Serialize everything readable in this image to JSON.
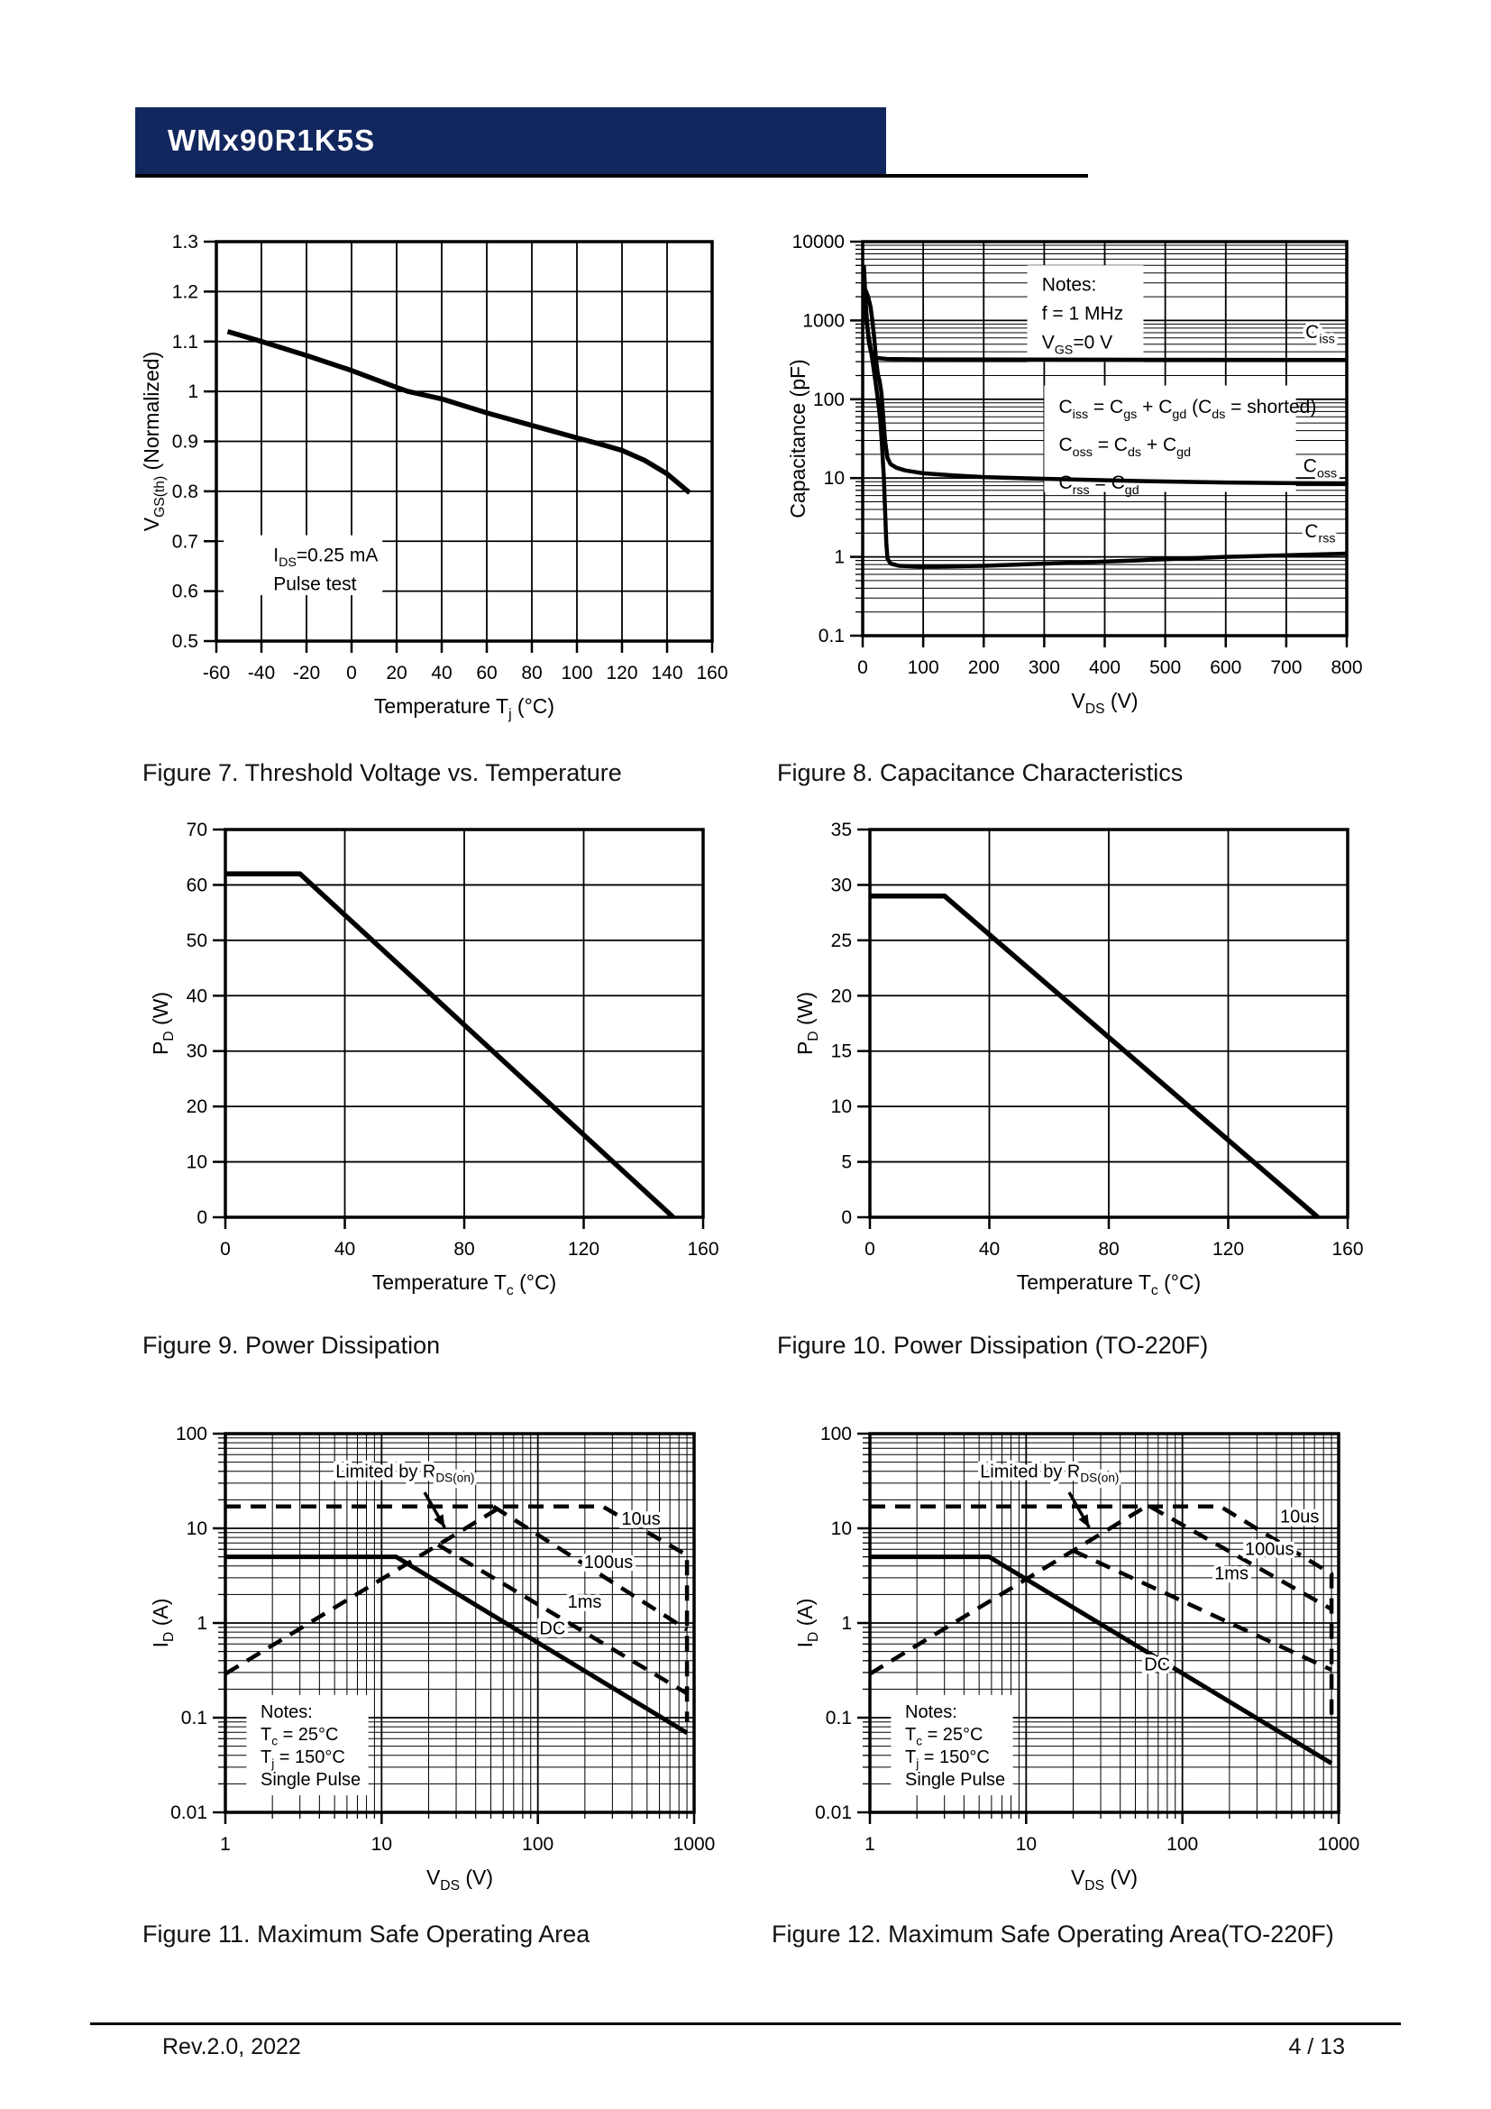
{
  "page": {
    "title": "WMx90R1K5S",
    "footer_left": "Rev.2.0, 2022",
    "footer_right": "4 / 13",
    "accent_color": "#12275e",
    "line_color": "#000000"
  },
  "chart_data": [
    {
      "id": "figure7",
      "type": "line",
      "title": "Figure 7. Threshold Voltage vs. Temperature",
      "xlabel": "Temperature T_{j} (°C)",
      "ylabel": "V_{GS(th)} (Normalized)",
      "xscale": "linear",
      "xlim": [
        -60,
        160
      ],
      "yscale": "linear",
      "ylim": [
        0.5,
        1.3
      ],
      "xticks": [
        -60,
        -40,
        -20,
        0,
        20,
        40,
        60,
        80,
        100,
        120,
        140,
        160
      ],
      "xtick_labels": [
        "-60",
        "-40",
        "-20",
        "0",
        "20",
        "40",
        "60",
        "80",
        "100",
        "120",
        "140",
        "160"
      ],
      "yticks": [
        0.5,
        0.6,
        0.7,
        0.8,
        0.9,
        1,
        1.1,
        1.2,
        1.3
      ],
      "ytick_labels": [
        "0.5",
        "0.6",
        "0.7",
        "0.8",
        "0.9",
        "1",
        "1.1",
        "1.2",
        "1.3"
      ],
      "series": [
        {
          "name": "VGS(th) normalized",
          "dash": false,
          "width": 5.5,
          "points": [
            [
              -55,
              1.12
            ],
            [
              -40,
              1.1
            ],
            [
              -20,
              1.072
            ],
            [
              0,
              1.042
            ],
            [
              20,
              1.008
            ],
            [
              25,
              1.0
            ],
            [
              40,
              0.985
            ],
            [
              60,
              0.957
            ],
            [
              80,
              0.932
            ],
            [
              100,
              0.907
            ],
            [
              110,
              0.895
            ],
            [
              120,
              0.882
            ],
            [
              130,
              0.862
            ],
            [
              140,
              0.835
            ],
            [
              150,
              0.797
            ]
          ]
        }
      ],
      "annotations": [
        {
          "text": "I_{DS}=0.25 mA\nPulse test",
          "fx": 0.115,
          "fy": 0.8,
          "size": 21,
          "lh": 32,
          "box": [
            0.015,
            0.735,
            0.32,
            0.15
          ]
        }
      ],
      "arrows": []
    },
    {
      "id": "figure8",
      "type": "line",
      "title": "Figure 8. Capacitance Characteristics",
      "xlabel": "V_{DS} (V)",
      "ylabel": "Capacitance (pF)",
      "xscale": "linear",
      "xlim": [
        0,
        800
      ],
      "yscale": "log",
      "ylim": [
        0.1,
        10000
      ],
      "xticks": [
        0,
        100,
        200,
        300,
        400,
        500,
        600,
        700,
        800
      ],
      "xtick_labels": [
        "0",
        "100",
        "200",
        "300",
        "400",
        "500",
        "600",
        "700",
        "800"
      ],
      "yticks": [
        0.1,
        1,
        10,
        100,
        1000,
        10000
      ],
      "ytick_labels": [
        "0.1",
        "1",
        "10",
        "100",
        "1000",
        "10000"
      ],
      "series": [
        {
          "name": "Ciss",
          "dash": false,
          "width": 4.5,
          "points": [
            [
              2,
              5000
            ],
            [
              3,
              3500
            ],
            [
              4,
              2300
            ],
            [
              6,
              1300
            ],
            [
              8,
              800
            ],
            [
              10,
              550
            ],
            [
              13,
              420
            ],
            [
              17,
              360
            ],
            [
              22,
              335
            ],
            [
              40,
              325
            ],
            [
              100,
              320
            ],
            [
              400,
              318
            ],
            [
              800,
              315
            ]
          ]
        },
        {
          "name": "Coss",
          "dash": false,
          "width": 4.5,
          "points": [
            [
              2,
              2600
            ],
            [
              5,
              2400
            ],
            [
              9,
              2000
            ],
            [
              13,
              1500
            ],
            [
              16,
              1000
            ],
            [
              19,
              600
            ],
            [
              21,
              400
            ],
            [
              23,
              280
            ],
            [
              25,
              210
            ],
            [
              28,
              170
            ],
            [
              31,
              120
            ],
            [
              34,
              60
            ],
            [
              37,
              30
            ],
            [
              41,
              18
            ],
            [
              46,
              15
            ],
            [
              56,
              13.5
            ],
            [
              70,
              12.5
            ],
            [
              100,
              11.5
            ],
            [
              150,
              10.8
            ],
            [
              200,
              10.3
            ],
            [
              300,
              9.8
            ],
            [
              450,
              9.2
            ],
            [
              600,
              8.8
            ],
            [
              800,
              8.5
            ]
          ]
        },
        {
          "name": "Crss",
          "dash": false,
          "width": 4.5,
          "points": [
            [
              2,
              1500
            ],
            [
              5,
              1100
            ],
            [
              9,
              700
            ],
            [
              13,
              450
            ],
            [
              17,
              280
            ],
            [
              21,
              170
            ],
            [
              25,
              100
            ],
            [
              29,
              55
            ],
            [
              32,
              25
            ],
            [
              35,
              10
            ],
            [
              37,
              4
            ],
            [
              39,
              1.5
            ],
            [
              41,
              0.95
            ],
            [
              46,
              0.82
            ],
            [
              60,
              0.77
            ],
            [
              100,
              0.75
            ],
            [
              200,
              0.77
            ],
            [
              300,
              0.82
            ],
            [
              450,
              0.9
            ],
            [
              600,
              1.0
            ],
            [
              800,
              1.1
            ]
          ]
        }
      ],
      "annotations": [
        {
          "text": "Notes:\nf = 1 MHz\nV_{GS}=0 V",
          "fx": 0.37,
          "fy": 0.125,
          "size": 21,
          "lh": 32,
          "box": [
            0.34,
            0.06,
            0.24,
            0.245
          ]
        },
        {
          "text": "C_{iss} = C_{gs} + C_{gd} (C_{ds} = shorted)\nC_{oss} = C_{ds} + C_{gd}\nC_{rss} = C_{gd}",
          "fx": 0.405,
          "fy": 0.435,
          "size": 21,
          "lh": 42,
          "box": [
            0.375,
            0.365,
            0.52,
            0.27
          ]
        },
        {
          "text": "C_{iss}",
          "fx": 0.945,
          "fy": 0.245,
          "size": 21,
          "anchor": "middle",
          "halo": true
        },
        {
          "text": "C_{oss}",
          "fx": 0.945,
          "fy": 0.585,
          "size": 21,
          "anchor": "middle",
          "halo": true
        },
        {
          "text": "C_{rss}",
          "fx": 0.945,
          "fy": 0.75,
          "size": 21,
          "anchor": "middle",
          "halo": true
        }
      ],
      "arrows": []
    },
    {
      "id": "figure9",
      "type": "line",
      "title": "Figure 9. Power Dissipation",
      "xlabel": "Temperature T_{c} (°C)",
      "ylabel": "P_{D} (W)",
      "xscale": "linear",
      "xlim": [
        0,
        160
      ],
      "yscale": "linear",
      "ylim": [
        0,
        70
      ],
      "xticks": [
        0,
        40,
        80,
        120,
        160
      ],
      "xtick_labels": [
        "0",
        "40",
        "80",
        "120",
        "160"
      ],
      "yticks": [
        0,
        10,
        20,
        30,
        40,
        50,
        60,
        70
      ],
      "ytick_labels": [
        "0",
        "10",
        "20",
        "30",
        "40",
        "50",
        "60",
        "70"
      ],
      "series": [
        {
          "name": "PD",
          "dash": false,
          "width": 5.5,
          "points": [
            [
              0,
              62
            ],
            [
              25,
              62
            ],
            [
              150,
              0
            ]
          ]
        }
      ],
      "annotations": [],
      "arrows": []
    },
    {
      "id": "figure10",
      "type": "line",
      "title": "Figure 10. Power Dissipation (TO-220F)",
      "xlabel": "Temperature T_{c} (°C)",
      "ylabel": "P_{D} (W)",
      "xscale": "linear",
      "xlim": [
        0,
        160
      ],
      "yscale": "linear",
      "ylim": [
        0,
        35
      ],
      "xticks": [
        0,
        40,
        80,
        120,
        160
      ],
      "xtick_labels": [
        "0",
        "40",
        "80",
        "120",
        "160"
      ],
      "yticks": [
        0,
        5,
        10,
        15,
        20,
        25,
        30,
        35
      ],
      "ytick_labels": [
        "0",
        "5",
        "10",
        "15",
        "20",
        "25",
        "30",
        "35"
      ],
      "series": [
        {
          "name": "PD",
          "dash": false,
          "width": 5.5,
          "points": [
            [
              0,
              29
            ],
            [
              25,
              29
            ],
            [
              150,
              0
            ]
          ]
        }
      ],
      "annotations": [],
      "arrows": []
    },
    {
      "id": "figure11",
      "type": "line",
      "title": "Figure 11. Maximum Safe Operating Area",
      "xlabel": "V_{DS} (V)",
      "ylabel": "I_{D} (A)",
      "xscale": "log",
      "xlim": [
        1,
        1000
      ],
      "yscale": "log",
      "ylim": [
        0.01,
        100
      ],
      "xticks": [
        1,
        10,
        100,
        1000
      ],
      "xtick_labels": [
        "1",
        "10",
        "100",
        "1000"
      ],
      "yticks": [
        0.01,
        0.1,
        1,
        10,
        100
      ],
      "ytick_labels": [
        "0.01",
        "0.1",
        "1",
        "10",
        "100"
      ],
      "series": [
        {
          "name": "10us",
          "dash": true,
          "width": 4.5,
          "points": [
            [
              1,
              17
            ],
            [
              260,
              17
            ],
            [
              900,
              5.2
            ],
            [
              900,
              0.09
            ]
          ]
        },
        {
          "name": "100us",
          "dash": true,
          "width": 4.5,
          "points": [
            [
              52,
              17
            ],
            [
              900,
              0.85
            ]
          ]
        },
        {
          "name": "1ms",
          "dash": true,
          "width": 4.5,
          "points": [
            [
              23,
              6.7
            ],
            [
              900,
              0.18
            ]
          ]
        },
        {
          "name": "DC",
          "dash": false,
          "width": 5,
          "points": [
            [
              1,
              5
            ],
            [
              12.4,
              5
            ],
            [
              900,
              0.069
            ]
          ]
        },
        {
          "name": "RDS(on) limit",
          "dash": true,
          "width": 4.5,
          "points": [
            [
              1,
              0.29
            ],
            [
              55,
              16
            ]
          ]
        }
      ],
      "annotations": [
        {
          "text": "Limited by R_{DS(on)}",
          "fx": 0.235,
          "fy": 0.115,
          "size": 20,
          "halo": true
        },
        {
          "text": "10us",
          "fx": 0.845,
          "fy": 0.24,
          "size": 20,
          "halo": true
        },
        {
          "text": "100us",
          "fx": 0.765,
          "fy": 0.355,
          "size": 20,
          "halo": true
        },
        {
          "text": "1ms",
          "fx": 0.73,
          "fy": 0.46,
          "size": 20,
          "halo": true
        },
        {
          "text": "DC",
          "fx": 0.67,
          "fy": 0.53,
          "size": 20,
          "halo": true
        },
        {
          "text": "Notes:\nT_{c} = 25°C\nT_{j} = 150°C\nSingle Pulse",
          "fx": 0.075,
          "fy": 0.75,
          "size": 20,
          "lh": 25,
          "box": [
            0.045,
            0.69,
            0.26,
            0.265
          ]
        }
      ],
      "arrows": [
        {
          "fx1": 0.425,
          "fy1": 0.155,
          "fx2": 0.468,
          "fy2": 0.248
        }
      ]
    },
    {
      "id": "figure12",
      "type": "line",
      "title": "Figure 12. Maximum Safe Operating Area(TO-220F)",
      "xlabel": "V_{DS} (V)",
      "ylabel": "I_{D} (A)",
      "xscale": "log",
      "xlim": [
        1,
        1000
      ],
      "yscale": "log",
      "ylim": [
        0.01,
        100
      ],
      "xticks": [
        1,
        10,
        100,
        1000
      ],
      "xtick_labels": [
        "1",
        "10",
        "100",
        "1000"
      ],
      "yticks": [
        0.01,
        0.1,
        1,
        10,
        100
      ],
      "ytick_labels": [
        "0.01",
        "0.1",
        "1",
        "10",
        "100"
      ],
      "series": [
        {
          "name": "10us",
          "dash": true,
          "width": 4.5,
          "points": [
            [
              1,
              17
            ],
            [
              175,
              17
            ],
            [
              900,
              3.3
            ],
            [
              900,
              0.09
            ]
          ]
        },
        {
          "name": "100us",
          "dash": true,
          "width": 4.5,
          "points": [
            [
              62,
              17
            ],
            [
              900,
              1.4
            ]
          ]
        },
        {
          "name": "1ms",
          "dash": true,
          "width": 4.5,
          "points": [
            [
              20,
              5.8
            ],
            [
              900,
              0.32
            ]
          ]
        },
        {
          "name": "DC",
          "dash": false,
          "width": 5,
          "points": [
            [
              1,
              5
            ],
            [
              5.8,
              5
            ],
            [
              900,
              0.033
            ]
          ]
        },
        {
          "name": "RDS(on) limit",
          "dash": true,
          "width": 4.5,
          "points": [
            [
              1,
              0.29
            ],
            [
              55,
              16
            ]
          ]
        }
      ],
      "annotations": [
        {
          "text": "Limited by R_{DS(on)}",
          "fx": 0.235,
          "fy": 0.115,
          "size": 20,
          "halo": true
        },
        {
          "text": "10us",
          "fx": 0.875,
          "fy": 0.235,
          "size": 20,
          "halo": true
        },
        {
          "text": "100us",
          "fx": 0.8,
          "fy": 0.32,
          "size": 20,
          "halo": true
        },
        {
          "text": "1ms",
          "fx": 0.735,
          "fy": 0.385,
          "size": 20,
          "halo": true
        },
        {
          "text": "DC",
          "fx": 0.585,
          "fy": 0.625,
          "size": 20,
          "halo": true
        },
        {
          "text": "Notes:\nT_{c} = 25°C\nT_{j} = 150°C\nSingle Pulse",
          "fx": 0.075,
          "fy": 0.75,
          "size": 20,
          "lh": 25,
          "box": [
            0.045,
            0.69,
            0.26,
            0.265
          ]
        }
      ],
      "arrows": [
        {
          "fx1": 0.425,
          "fy1": 0.155,
          "fx2": 0.468,
          "fy2": 0.248
        }
      ]
    }
  ]
}
